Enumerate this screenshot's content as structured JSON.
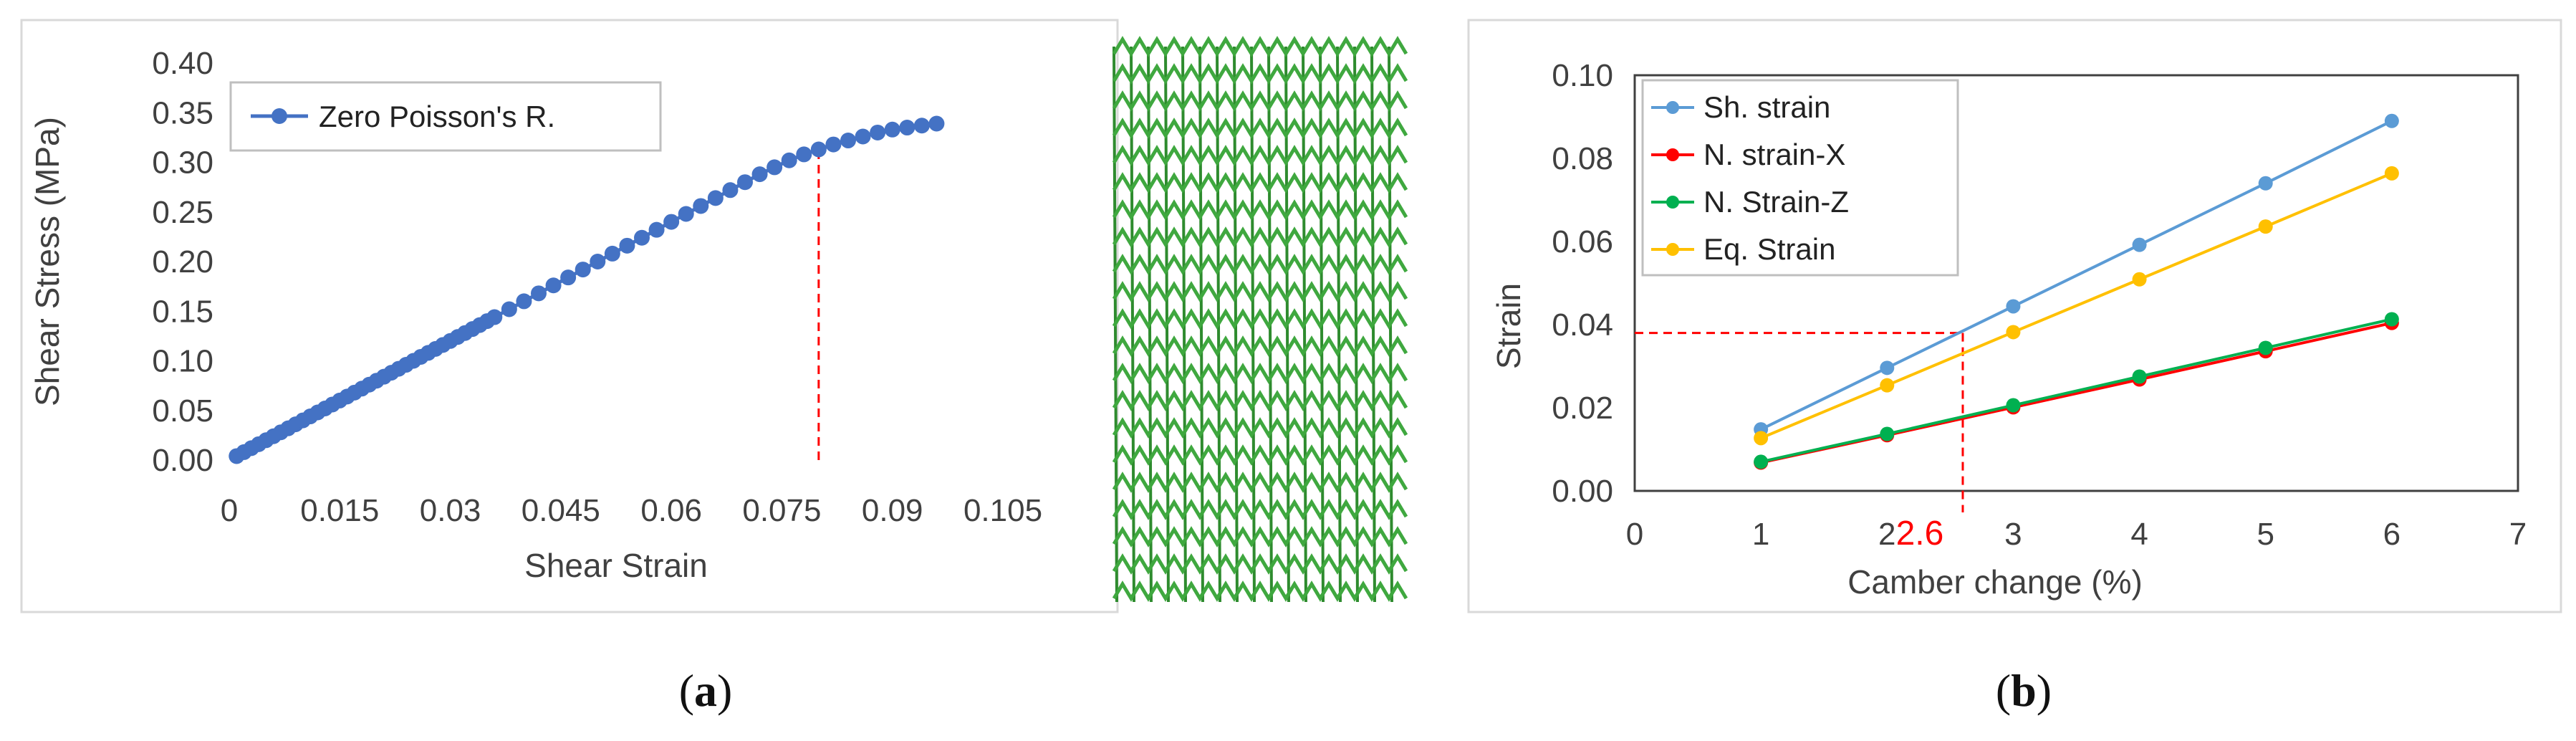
{
  "panel_a": {
    "caption": "(a)",
    "caption_letter": "a",
    "chart_data": {
      "type": "scatter",
      "xlabel": "Shear Strain",
      "ylabel": "Shear Stress (MPa)",
      "xlim": [
        0,
        0.105
      ],
      "ylim": [
        0,
        0.4
      ],
      "xticks": [
        "0",
        "0.015",
        "0.03",
        "0.045",
        "0.06",
        "0.075",
        "0.09",
        "0.105"
      ],
      "yticks": [
        "0.00",
        "0.05",
        "0.10",
        "0.15",
        "0.20",
        "0.25",
        "0.30",
        "0.35",
        "0.40"
      ],
      "grid": false,
      "legend": "top-left",
      "series": [
        {
          "name": "Zero Poisson's R.",
          "color": "#4472c4",
          "x": [
            0.001,
            0.002,
            0.003,
            0.004,
            0.005,
            0.006,
            0.007,
            0.008,
            0.009,
            0.01,
            0.011,
            0.012,
            0.013,
            0.014,
            0.015,
            0.016,
            0.017,
            0.018,
            0.019,
            0.02,
            0.021,
            0.022,
            0.023,
            0.024,
            0.025,
            0.026,
            0.027,
            0.028,
            0.029,
            0.03,
            0.031,
            0.032,
            0.033,
            0.034,
            0.035,
            0.036,
            0.038,
            0.04,
            0.042,
            0.044,
            0.046,
            0.048,
            0.05,
            0.052,
            0.054,
            0.056,
            0.058,
            0.06,
            0.062,
            0.064,
            0.066,
            0.068,
            0.07,
            0.072,
            0.074,
            0.076,
            0.078,
            0.08,
            0.082,
            0.084,
            0.086,
            0.088,
            0.09,
            0.092,
            0.094,
            0.096
          ],
          "y": [
            0.004,
            0.008,
            0.012,
            0.016,
            0.02,
            0.024,
            0.028,
            0.032,
            0.036,
            0.04,
            0.044,
            0.048,
            0.052,
            0.056,
            0.06,
            0.064,
            0.068,
            0.072,
            0.076,
            0.08,
            0.084,
            0.088,
            0.092,
            0.096,
            0.1,
            0.104,
            0.108,
            0.112,
            0.116,
            0.12,
            0.124,
            0.128,
            0.132,
            0.136,
            0.14,
            0.144,
            0.152,
            0.16,
            0.168,
            0.176,
            0.184,
            0.192,
            0.2,
            0.208,
            0.216,
            0.224,
            0.232,
            0.24,
            0.248,
            0.256,
            0.264,
            0.272,
            0.28,
            0.288,
            0.295,
            0.302,
            0.308,
            0.313,
            0.318,
            0.322,
            0.326,
            0.33,
            0.333,
            0.335,
            0.337,
            0.339
          ]
        }
      ],
      "marker_line_x": 0.08,
      "marker_line_color": "#ff0000"
    }
  },
  "panel_b": {
    "caption": "(b)",
    "caption_letter": "b",
    "chart_data": {
      "type": "line",
      "xlabel": "Camber change (%)",
      "ylabel": "Strain",
      "xlim": [
        0,
        7
      ],
      "ylim": [
        0,
        0.1
      ],
      "xticks": [
        "0",
        "1",
        "2",
        "3",
        "4",
        "5",
        "6",
        "7"
      ],
      "yticks": [
        "0.00",
        "0.02",
        "0.04",
        "0.06",
        "0.08",
        "0.10"
      ],
      "grid": false,
      "legend": "top-left",
      "x": [
        1,
        2,
        3,
        4,
        5,
        6
      ],
      "series": [
        {
          "name": "Sh. strain",
          "color": "#5b9bd5",
          "values": [
            0.0148,
            0.0296,
            0.0444,
            0.0592,
            0.074,
            0.089
          ]
        },
        {
          "name": "N. strain-X",
          "color": "#ff0000",
          "values": [
            0.0068,
            0.0134,
            0.0201,
            0.0268,
            0.0336,
            0.0404
          ]
        },
        {
          "name": "N. Strain-Z",
          "color": "#00b050",
          "values": [
            0.007,
            0.0137,
            0.0206,
            0.0275,
            0.0344,
            0.0413
          ]
        },
        {
          "name": "Eq. Strain",
          "color": "#ffc000",
          "values": [
            0.0127,
            0.0254,
            0.0382,
            0.0509,
            0.0636,
            0.0764
          ]
        }
      ],
      "annotation": {
        "x": 2.6,
        "y": 0.038,
        "label": "2.6",
        "color": "#ff0000"
      }
    }
  }
}
